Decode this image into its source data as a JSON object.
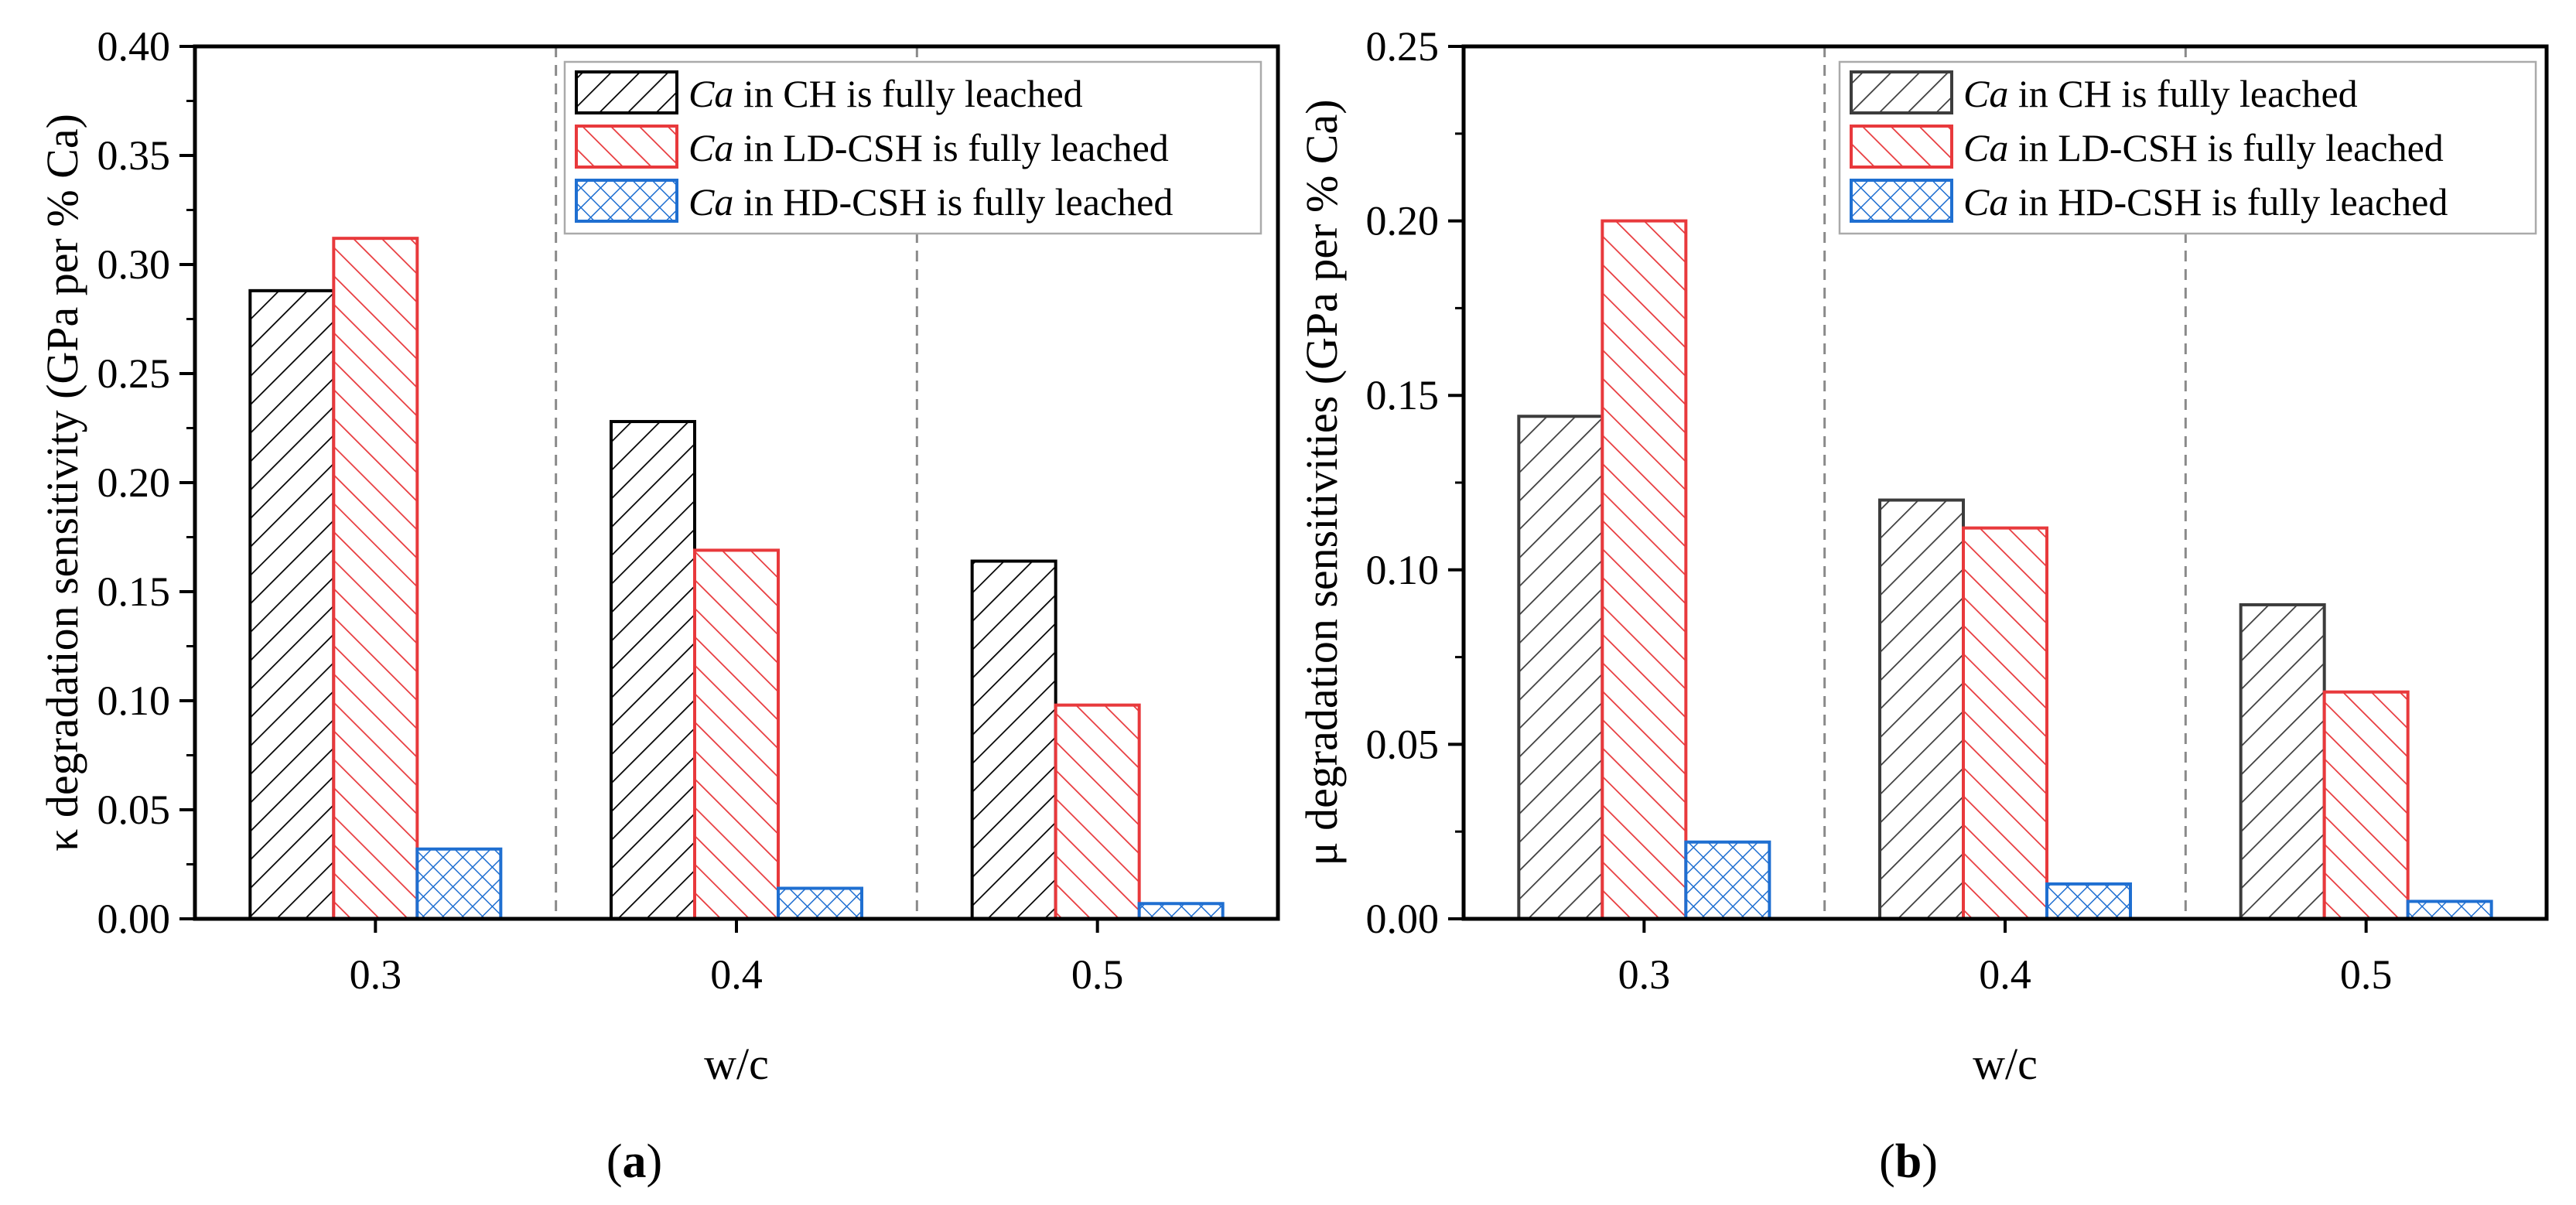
{
  "figure": {
    "captions": [
      {
        "open": "(",
        "letter": "a",
        "close": ")"
      },
      {
        "open": "(",
        "letter": "b",
        "close": ")"
      }
    ]
  },
  "legend": [
    {
      "ca": "Ca",
      "text": " in CH is fully leached"
    },
    {
      "ca": "Ca",
      "text": " in LD-CSH is fully leached"
    },
    {
      "ca": "Ca",
      "text": " in HD-CSH is fully leached"
    }
  ],
  "colors": {
    "ch_a": "#000000",
    "ch_b": "#3c3c3c",
    "ld": "#e8393c",
    "hd": "#1f6fd1",
    "grid": "#8a8a8a"
  },
  "chart_data": [
    {
      "type": "bar",
      "panel": "a",
      "categories": [
        "0.3",
        "0.4",
        "0.5"
      ],
      "series": [
        {
          "name": "Ca in CH is fully leached",
          "values": [
            0.288,
            0.228,
            0.164
          ]
        },
        {
          "name": "Ca in LD-CSH is fully leached",
          "values": [
            0.312,
            0.169,
            0.098
          ]
        },
        {
          "name": "Ca in HD-CSH is fully leached",
          "values": [
            0.032,
            0.014,
            0.007
          ]
        }
      ],
      "xlabel": "w/c",
      "ylabel": "κ degradation sensitivity (GPa per % Ca)",
      "ylim": [
        0,
        0.4
      ],
      "yticks": [
        "0.00",
        "0.05",
        "0.10",
        "0.15",
        "0.20",
        "0.25",
        "0.30",
        "0.35",
        "0.40"
      ],
      "legend_position": "top-right"
    },
    {
      "type": "bar",
      "panel": "b",
      "categories": [
        "0.3",
        "0.4",
        "0.5"
      ],
      "series": [
        {
          "name": "Ca in CH is fully leached",
          "values": [
            0.144,
            0.12,
            0.09
          ]
        },
        {
          "name": "Ca in LD-CSH is fully leached",
          "values": [
            0.2,
            0.112,
            0.065
          ]
        },
        {
          "name": "Ca in HD-CSH is fully leached",
          "values": [
            0.022,
            0.01,
            0.005
          ]
        }
      ],
      "xlabel": "w/c",
      "ylabel": "μ degradation sensitivities (GPa per % Ca)",
      "ylim": [
        0,
        0.25
      ],
      "yticks": [
        "0.00",
        "0.05",
        "0.10",
        "0.15",
        "0.20",
        "0.25"
      ],
      "legend_position": "top-right"
    }
  ]
}
